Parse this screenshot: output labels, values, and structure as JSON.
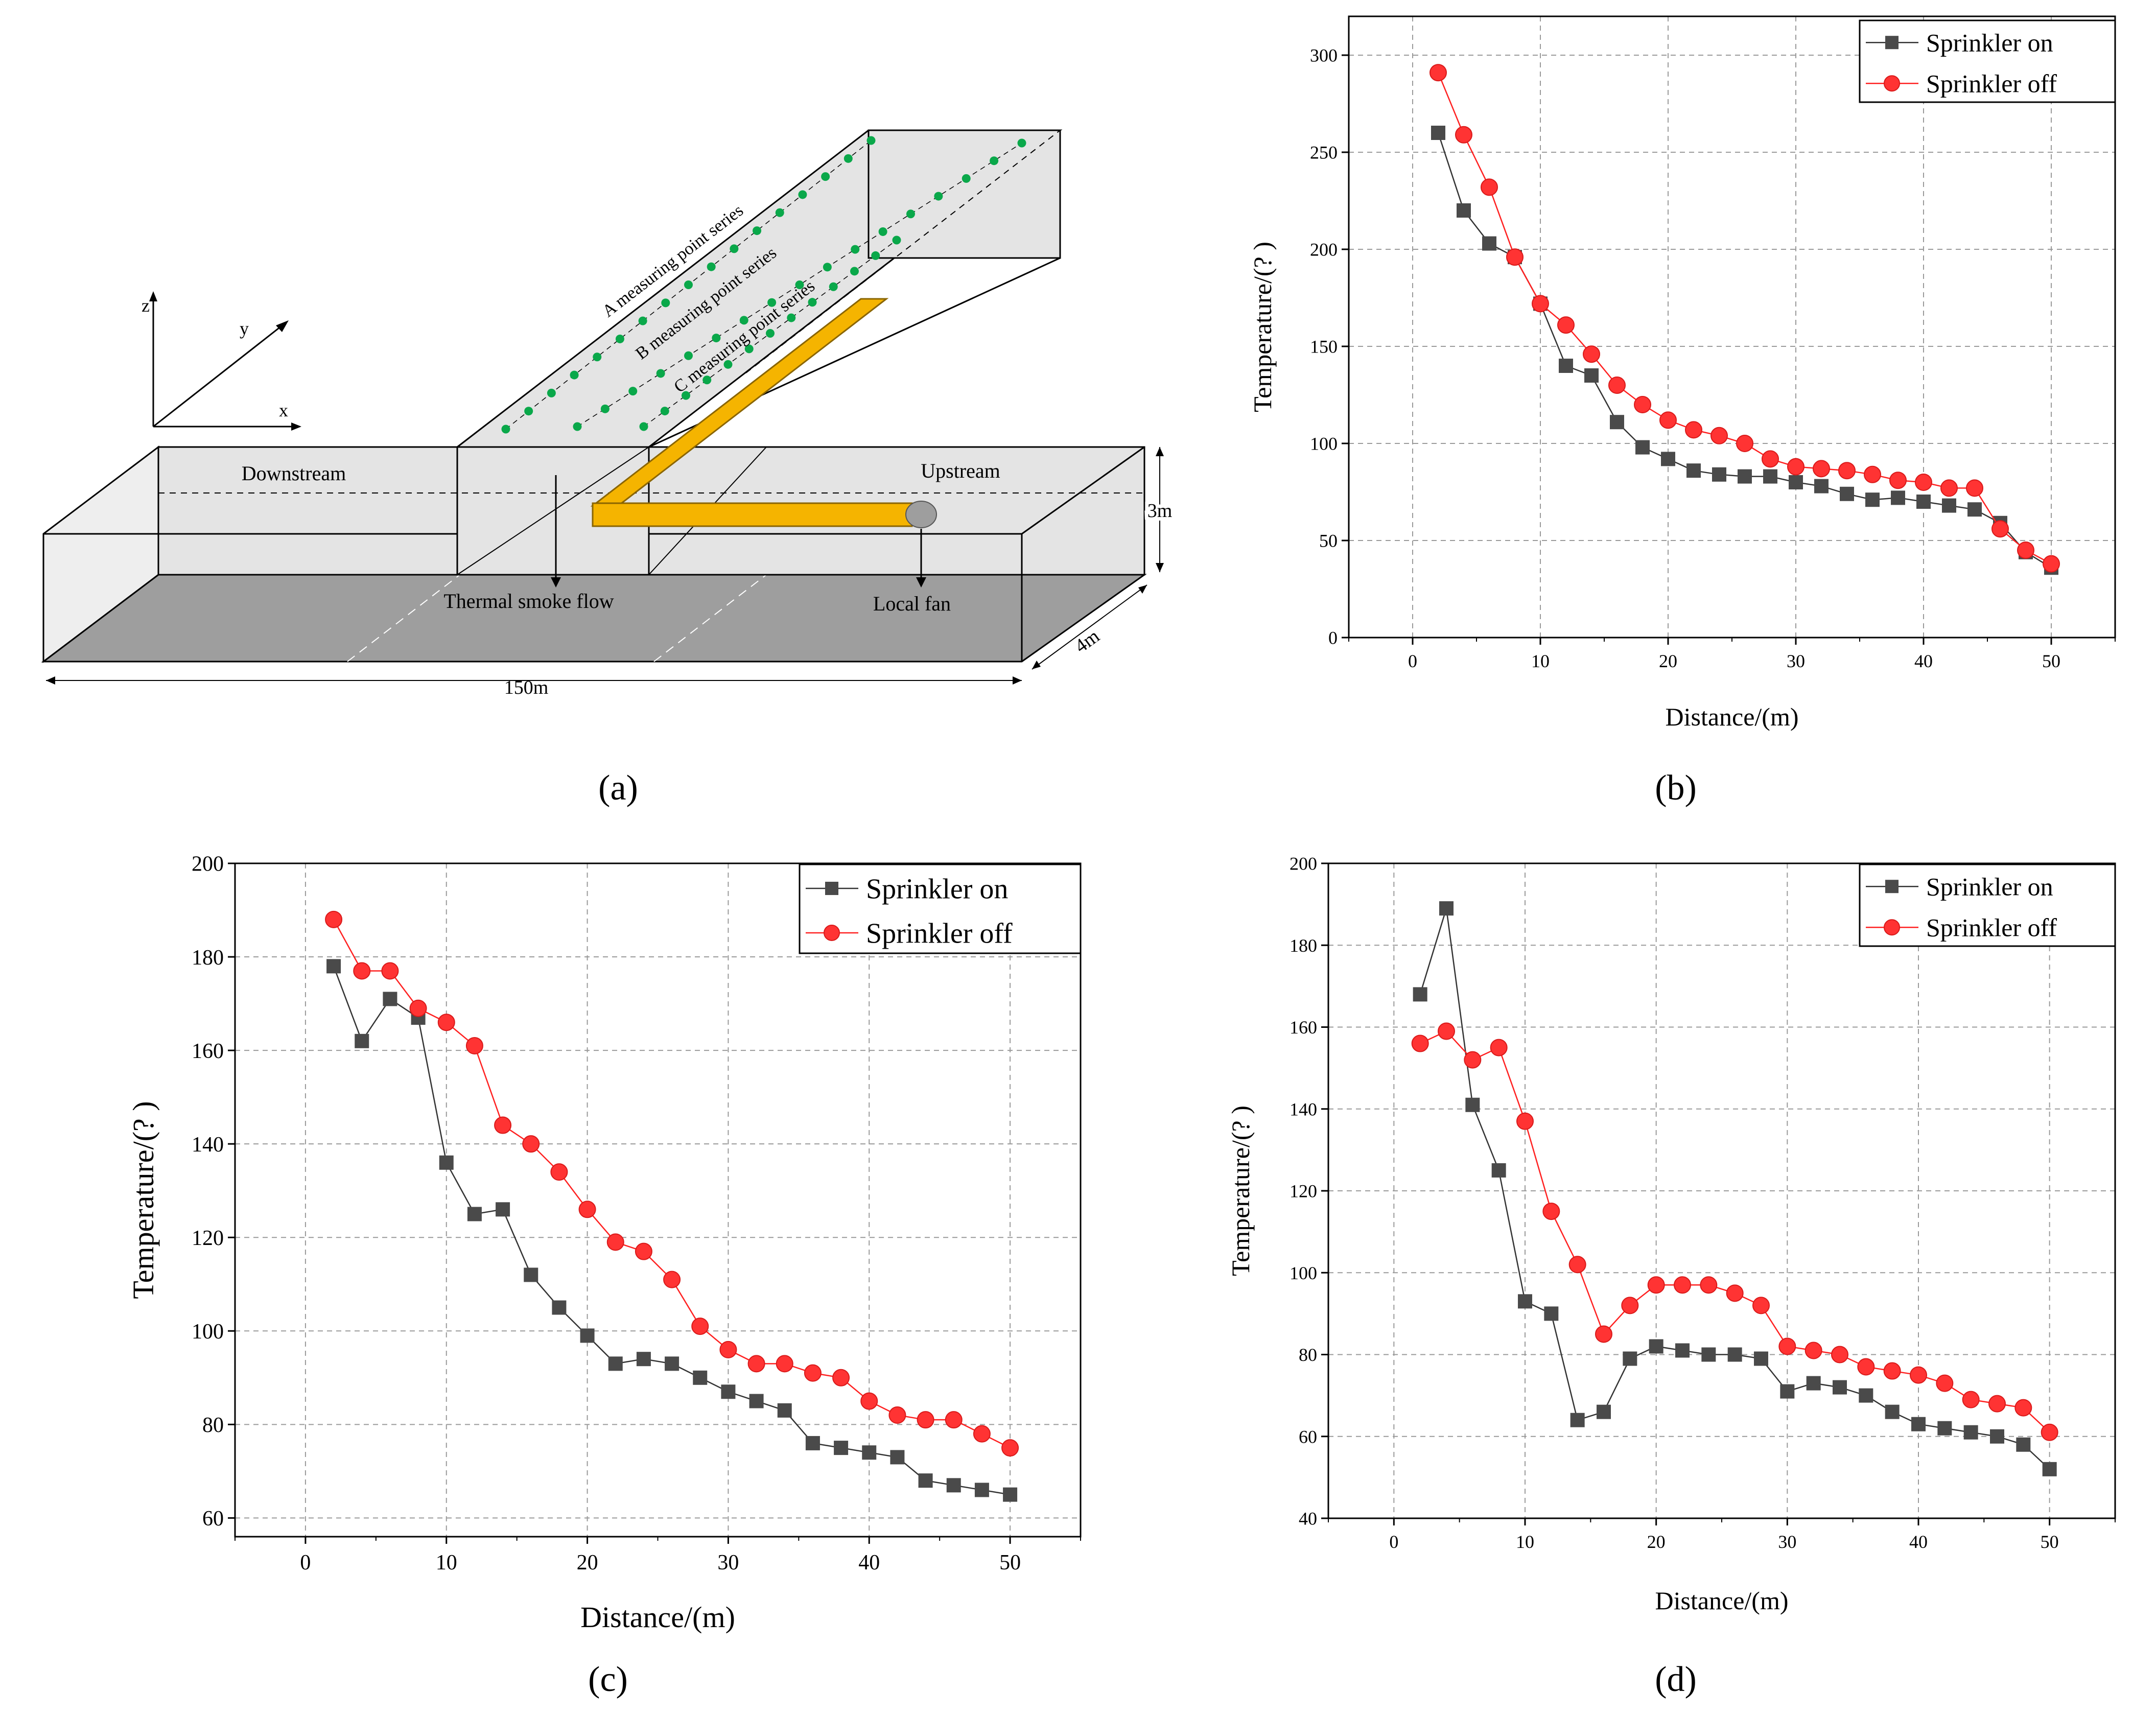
{
  "panel_labels": [
    "(a)",
    "(b)",
    "(c)",
    "(d)"
  ],
  "diagram": {
    "axes": {
      "z": "z",
      "y": "y",
      "x": "x"
    },
    "series_labels": [
      "A measuring point series",
      "B measuring point series",
      "C measuring point series"
    ],
    "downstream": "Downstream",
    "upstream": "Upstream",
    "thermal_smoke_flow": "Thermal smoke flow",
    "local_fan": "Local fan",
    "dim_length": "150m",
    "dim_width": "4m",
    "dim_height": "3m",
    "colors": {
      "duct": "#f5b400",
      "measuring_point": "#0aa84a",
      "floor": "#9e9e9e",
      "wall": "#e4e4e4"
    }
  },
  "chart_data": [
    {
      "type": "line",
      "panel": "(b)",
      "xlabel": "Distance/(m)",
      "ylabel": "Temperature/(?   )",
      "xlim": [
        -5,
        55
      ],
      "ylim": [
        0,
        320
      ],
      "xticks": [
        0,
        10,
        20,
        30,
        40,
        50
      ],
      "yticks": [
        0,
        50,
        100,
        150,
        200,
        250,
        300
      ],
      "grid": true,
      "legend_position": "top-right",
      "x": [
        2,
        4,
        6,
        8,
        10,
        12,
        14,
        16,
        18,
        20,
        22,
        24,
        26,
        28,
        30,
        32,
        34,
        36,
        38,
        40,
        42,
        44,
        46,
        48,
        50
      ],
      "series": [
        {
          "name": "Sprinkler on",
          "marker": "square",
          "color": "#4a4a4a",
          "values": [
            260,
            220,
            203,
            196,
            172,
            140,
            135,
            111,
            98,
            92,
            86,
            84,
            83,
            83,
            80,
            78,
            74,
            71,
            72,
            70,
            68,
            66,
            59,
            44,
            36
          ]
        },
        {
          "name": "Sprinkler off",
          "marker": "circle",
          "color": "#ff3333",
          "values": [
            291,
            259,
            232,
            196,
            172,
            161,
            146,
            130,
            120,
            112,
            107,
            104,
            100,
            92,
            88,
            87,
            86,
            84,
            81,
            80,
            77,
            77,
            56,
            45,
            38
          ]
        }
      ]
    },
    {
      "type": "line",
      "panel": "(c)",
      "xlabel": "Distance/(m)",
      "ylabel": "Temperature/(?   )",
      "xlim": [
        -5,
        55
      ],
      "ylim": [
        56,
        200
      ],
      "xticks": [
        0,
        10,
        20,
        30,
        40,
        50
      ],
      "yticks": [
        60,
        80,
        100,
        120,
        140,
        160,
        180,
        200
      ],
      "grid": true,
      "legend_position": "top-right",
      "x": [
        2,
        4,
        6,
        8,
        10,
        12,
        14,
        16,
        18,
        20,
        22,
        24,
        26,
        28,
        30,
        32,
        34,
        36,
        38,
        40,
        42,
        44,
        46,
        48,
        50
      ],
      "series": [
        {
          "name": "Sprinkler on",
          "marker": "square",
          "color": "#4a4a4a",
          "values": [
            178,
            162,
            171,
            167,
            136,
            125,
            126,
            112,
            105,
            99,
            93,
            94,
            93,
            90,
            87,
            85,
            83,
            76,
            75,
            74,
            73,
            68,
            67,
            66,
            65
          ]
        },
        {
          "name": "Sprinkler off",
          "marker": "circle",
          "color": "#ff3333",
          "values": [
            188,
            177,
            177,
            169,
            166,
            161,
            144,
            140,
            134,
            126,
            119,
            117,
            111,
            101,
            96,
            93,
            93,
            91,
            90,
            85,
            82,
            81,
            81,
            78,
            75
          ]
        }
      ]
    },
    {
      "type": "line",
      "panel": "(d)",
      "xlabel": "Distance/(m)",
      "ylabel": "Temperature/(?   )",
      "xlim": [
        -5,
        55
      ],
      "ylim": [
        40,
        200
      ],
      "xticks": [
        0,
        10,
        20,
        30,
        40,
        50
      ],
      "yticks": [
        40,
        60,
        80,
        100,
        120,
        140,
        160,
        180,
        200
      ],
      "grid": true,
      "legend_position": "top-right",
      "x": [
        2,
        4,
        6,
        8,
        10,
        12,
        14,
        16,
        18,
        20,
        22,
        24,
        26,
        28,
        30,
        32,
        34,
        36,
        38,
        40,
        42,
        44,
        46,
        48,
        50
      ],
      "series": [
        {
          "name": "Sprinkler on",
          "marker": "square",
          "color": "#4a4a4a",
          "values": [
            168,
            189,
            141,
            125,
            93,
            90,
            64,
            66,
            79,
            82,
            81,
            80,
            80,
            79,
            71,
            73,
            72,
            70,
            66,
            63,
            62,
            61,
            60,
            58,
            52
          ]
        },
        {
          "name": "Sprinkler off",
          "marker": "circle",
          "color": "#ff3333",
          "values": [
            156,
            159,
            152,
            155,
            137,
            115,
            102,
            85,
            92,
            97,
            97,
            97,
            95,
            92,
            82,
            81,
            80,
            77,
            76,
            75,
            73,
            69,
            68,
            67,
            61
          ]
        }
      ]
    }
  ]
}
